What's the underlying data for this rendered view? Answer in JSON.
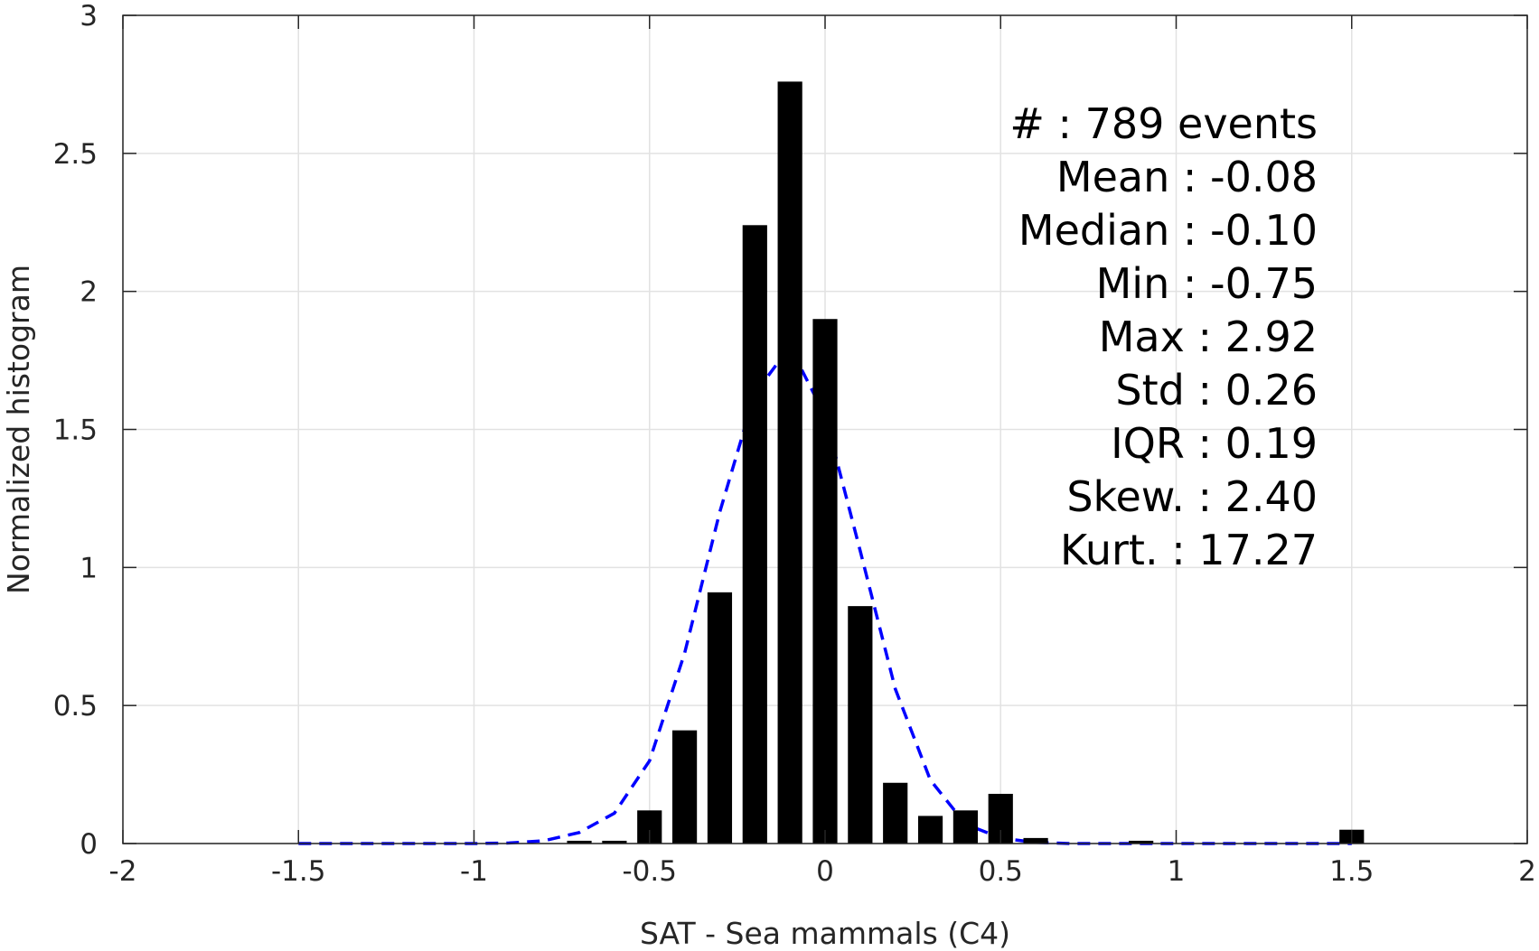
{
  "chart_data": {
    "type": "bar",
    "title": "",
    "xlabel": "SAT - Sea mammals  (C4)",
    "ylabel": "Normalized histogram",
    "xlim": [
      -2,
      2
    ],
    "ylim": [
      0,
      3
    ],
    "xticks": [
      -2,
      -1.5,
      -1,
      -0.5,
      0,
      0.5,
      1,
      1.5,
      2
    ],
    "xtick_labels": [
      "-2",
      "-1.5",
      "-1",
      "-0.5",
      "0",
      "0.5",
      "1",
      "1.5",
      "2"
    ],
    "yticks": [
      0,
      0.5,
      1,
      1.5,
      2,
      2.5,
      3
    ],
    "ytick_labels": [
      "0",
      "0.5",
      "1",
      "1.5",
      "2",
      "2.5",
      "3"
    ],
    "grid": true,
    "bar_width": 0.07,
    "bars": {
      "x": [
        -0.7,
        -0.6,
        -0.5,
        -0.4,
        -0.3,
        -0.2,
        -0.1,
        0.0,
        0.1,
        0.2,
        0.3,
        0.4,
        0.5,
        0.6,
        0.9,
        1.5
      ],
      "y": [
        0.01,
        0.01,
        0.12,
        0.41,
        0.91,
        2.24,
        2.76,
        1.9,
        0.86,
        0.22,
        0.1,
        0.12,
        0.18,
        0.02,
        0.01,
        0.05
      ],
      "color": "#000000"
    },
    "fit_curve": {
      "style": "dashed",
      "color": "#0000ff",
      "x": [
        -1.5,
        -1.4,
        -1.3,
        -1.2,
        -1.1,
        -1.0,
        -0.9,
        -0.8,
        -0.7,
        -0.6,
        -0.5,
        -0.4,
        -0.3,
        -0.2,
        -0.1,
        0.0,
        0.1,
        0.2,
        0.3,
        0.4,
        0.5,
        0.6,
        0.7,
        0.8,
        0.9,
        1.0,
        1.1,
        1.2,
        1.3,
        1.4,
        1.5
      ],
      "y": [
        0,
        0,
        0,
        0,
        0,
        0,
        0.002,
        0.01,
        0.04,
        0.11,
        0.3,
        0.69,
        1.2,
        1.63,
        1.8,
        1.55,
        1.06,
        0.56,
        0.23,
        0.07,
        0.02,
        0.004,
        0,
        0,
        0,
        0,
        0,
        0,
        0,
        0,
        0
      ]
    },
    "annotation": {
      "lines": [
        "#  : 789 events",
        "Mean : -0.08",
        "Median : -0.10",
        "Min : -0.75",
        "Max : 2.92",
        "Std : 0.26",
        "IQR : 0.19",
        "Skew. : 2.40",
        "Kurt. : 17.27"
      ]
    }
  }
}
